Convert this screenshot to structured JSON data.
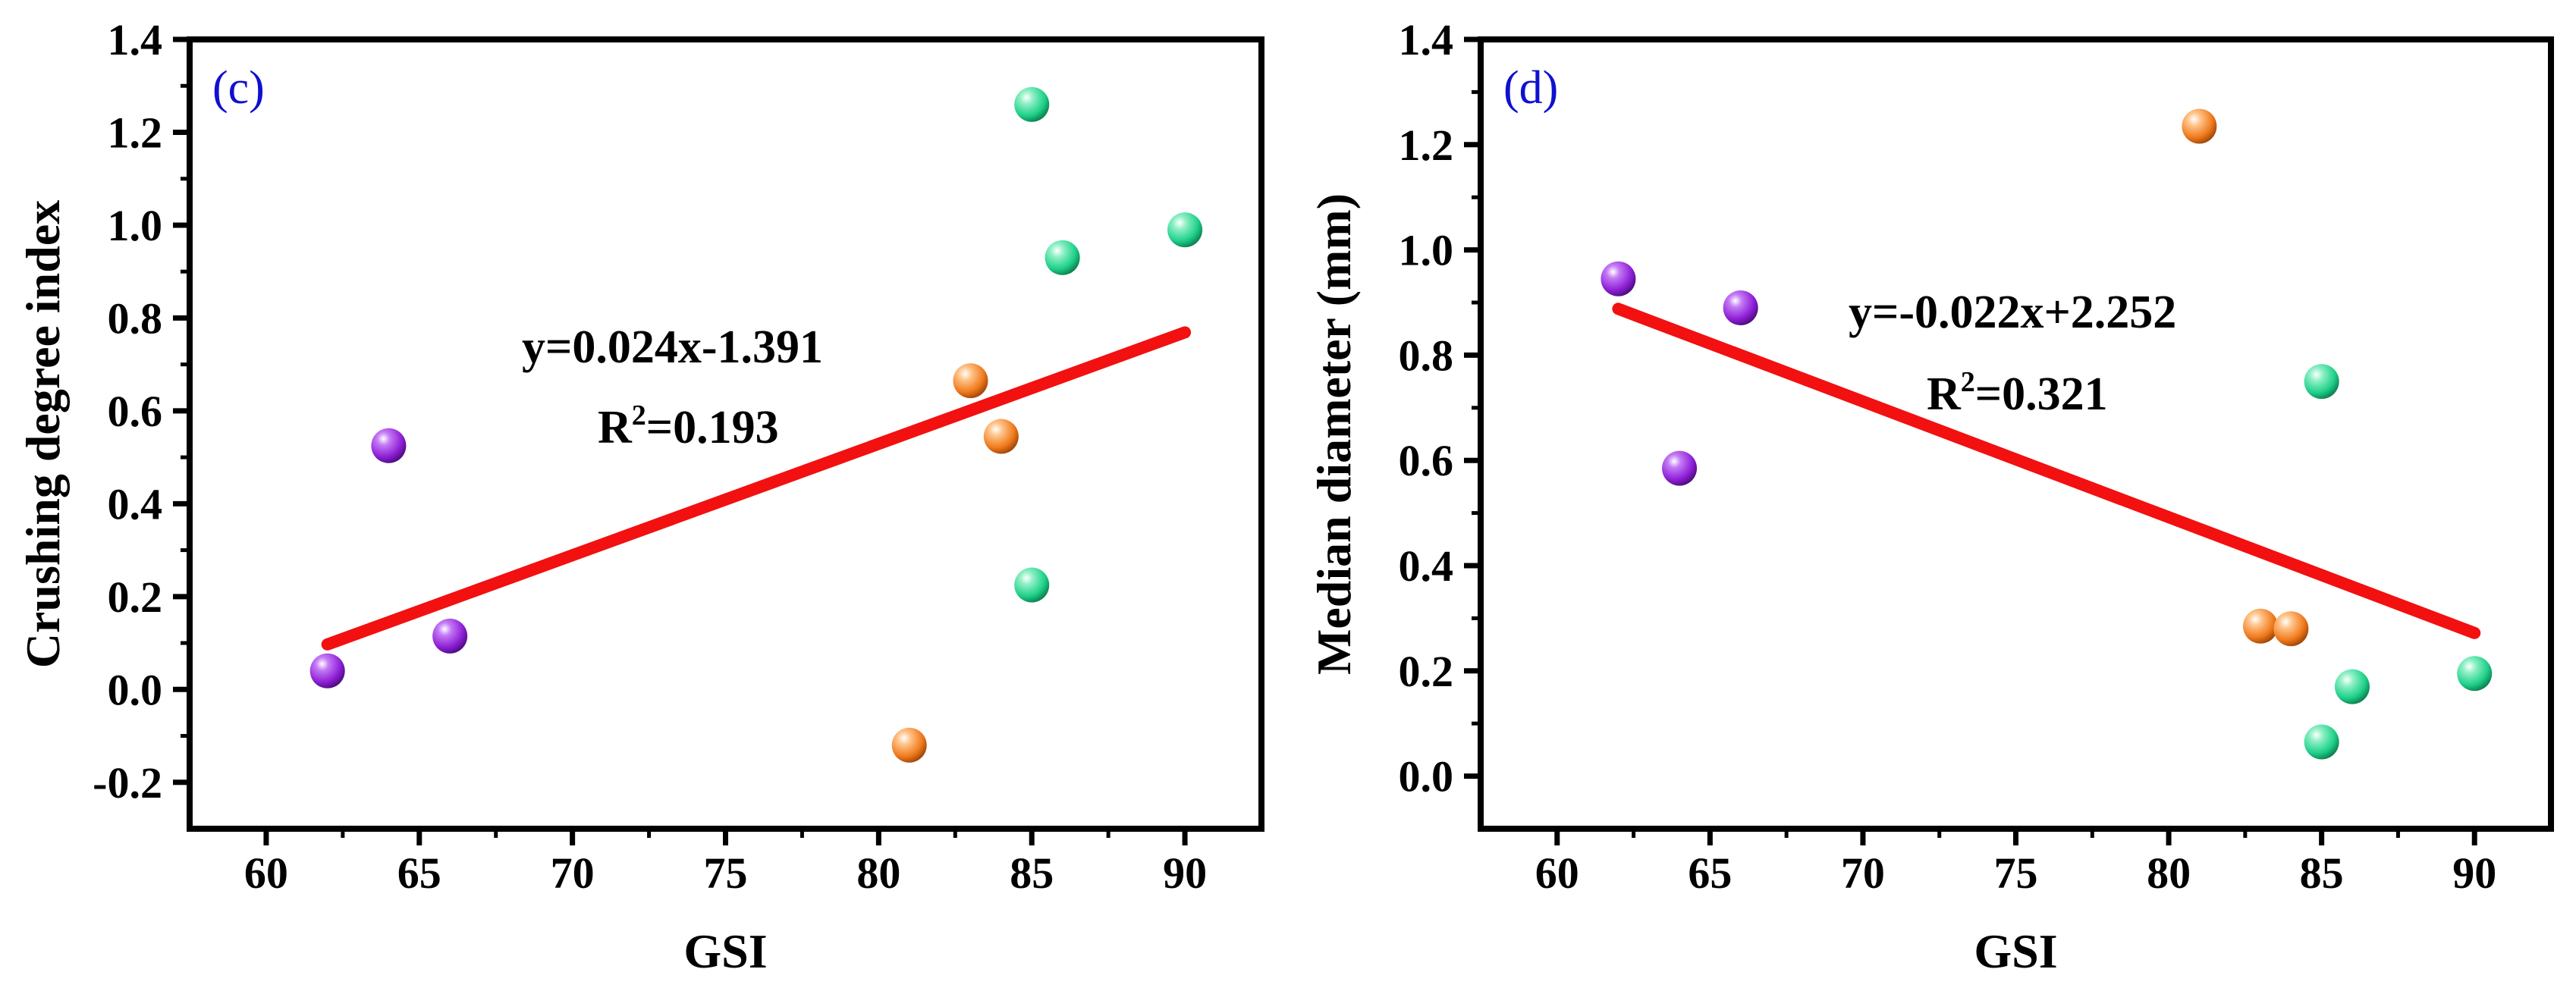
{
  "colors": {
    "purple": "#8e1fd6",
    "orange": "#f07a1c",
    "green": "#1ed08a",
    "fit_line": "#f21010",
    "panel_tag": "#1010d0"
  },
  "chart_data": [
    {
      "type": "scatter",
      "panel_label": "(c)",
      "xlabel": "GSI",
      "ylabel": "Crushing degree index",
      "xlim": [
        57.5,
        92.5
      ],
      "ylim": [
        -0.3,
        1.4
      ],
      "xticks": [
        60,
        65,
        70,
        75,
        80,
        85,
        90
      ],
      "yticks": [
        -0.2,
        0.0,
        0.2,
        0.4,
        0.6,
        0.8,
        1.0,
        1.2,
        1.4
      ],
      "xtick_labels": [
        "60",
        "65",
        "70",
        "75",
        "80",
        "85",
        "90"
      ],
      "ytick_labels": [
        "-0.2",
        "0.0",
        "0.2",
        "0.4",
        "0.6",
        "0.8",
        "1.0",
        "1.2",
        "1.4"
      ],
      "series": [
        {
          "name": "purple",
          "color_key": "purple",
          "x": [
            62,
            64,
            66
          ],
          "y": [
            0.04,
            0.525,
            0.115
          ]
        },
        {
          "name": "orange",
          "color_key": "orange",
          "x": [
            81,
            83,
            84
          ],
          "y": [
            -0.12,
            0.665,
            0.545
          ]
        },
        {
          "name": "green",
          "color_key": "green",
          "x": [
            85,
            85,
            86,
            90
          ],
          "y": [
            1.26,
            0.225,
            0.93,
            0.99
          ]
        }
      ],
      "fit": {
        "slope": 0.024,
        "intercept": -1.391,
        "x_range": [
          62,
          90
        ]
      },
      "equation": "y=0.024x-1.391",
      "r2_prefix": "R",
      "r2_sup": "2",
      "r2_value": "=0.193"
    },
    {
      "type": "scatter",
      "panel_label": "(d)",
      "xlabel": "GSI",
      "ylabel": "Median diameter (mm)",
      "xlim": [
        57.5,
        92.5
      ],
      "ylim": [
        -0.1,
        1.4
      ],
      "xticks": [
        60,
        65,
        70,
        75,
        80,
        85,
        90
      ],
      "yticks": [
        0.0,
        0.2,
        0.4,
        0.6,
        0.8,
        1.0,
        1.2,
        1.4
      ],
      "xtick_labels": [
        "60",
        "65",
        "70",
        "75",
        "80",
        "85",
        "90"
      ],
      "ytick_labels": [
        "0.0",
        "0.2",
        "0.4",
        "0.6",
        "0.8",
        "1.0",
        "1.2",
        "1.4"
      ],
      "series": [
        {
          "name": "purple",
          "color_key": "purple",
          "x": [
            62,
            64,
            66
          ],
          "y": [
            0.945,
            0.585,
            0.89
          ]
        },
        {
          "name": "orange",
          "color_key": "orange",
          "x": [
            81,
            83,
            84
          ],
          "y": [
            1.235,
            0.285,
            0.28
          ]
        },
        {
          "name": "green",
          "color_key": "green",
          "x": [
            85,
            85,
            86,
            90
          ],
          "y": [
            0.75,
            0.065,
            0.17,
            0.195
          ]
        }
      ],
      "fit": {
        "slope": -0.022,
        "intercept": 2.252,
        "x_range": [
          62,
          90
        ]
      },
      "equation": "y=-0.022x+2.252",
      "r2_prefix": "R",
      "r2_sup": "2",
      "r2_value": "=0.321"
    }
  ]
}
